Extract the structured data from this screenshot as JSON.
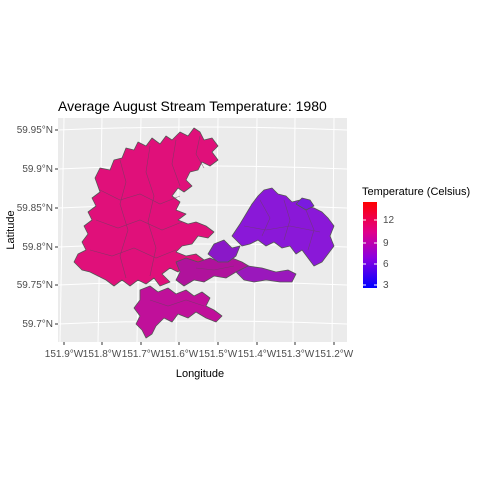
{
  "map": {
    "title": "Average August Stream Temperature: 1980",
    "x_axis": {
      "label": "Longitude",
      "ticks": [
        "151.9°W",
        "151.8°W",
        "151.7°W",
        "151.6°W",
        "151.5°W",
        "151.4°W",
        "151.3°W",
        "151.2°W"
      ]
    },
    "y_axis": {
      "label": "Latitude",
      "ticks": [
        "59.95°N",
        "59.9°N",
        "59.85°N",
        "59.8°N",
        "59.75°N",
        "59.7°N"
      ]
    },
    "legend": {
      "title": "Temperature (Celsius)",
      "ticks": [
        "12",
        "9",
        "6",
        "3"
      ],
      "gradient": {
        "low": "#0000ff",
        "high": "#ff0000"
      }
    },
    "colors": {
      "panel_bg": "#ebebeb",
      "grid": "#ffffff",
      "boundary": "#555555",
      "west_fill": "#e0107a",
      "central_fill": "#b0109c",
      "east_fill": "#8a18d8"
    }
  }
}
